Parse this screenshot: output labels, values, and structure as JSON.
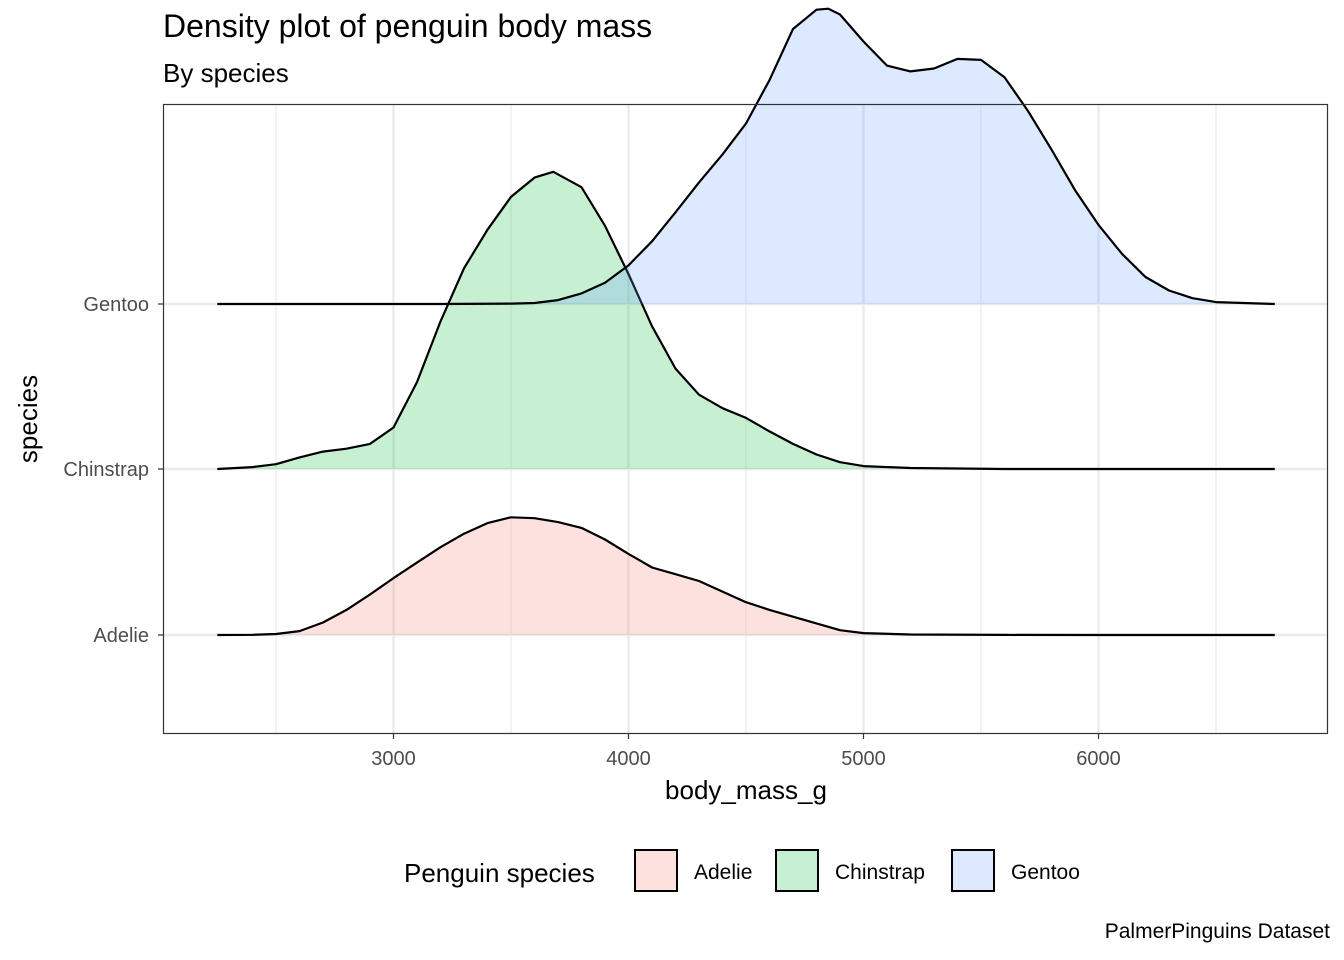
{
  "chart_data": {
    "type": "area",
    "subtype": "ridgeline-density",
    "title": "Density plot of penguin body mass",
    "subtitle": "By species",
    "caption": "PalmerPinguins Dataset",
    "xlabel": "body_mass_g",
    "ylabel": "species",
    "xlim": [
      2200,
      6800
    ],
    "x_ticks": [
      3000,
      4000,
      5000,
      6000
    ],
    "categories": [
      "Adelie",
      "Chinstrap",
      "Gentoo"
    ],
    "grid": true,
    "legend": {
      "title": "Penguin species",
      "position": "bottom",
      "entries": [
        "Adelie",
        "Chinstrap",
        "Gentoo"
      ]
    },
    "colors": {
      "Adelie": "#F8766D",
      "Chinstrap": "#00BA38",
      "Gentoo": "#619CFF"
    },
    "series": [
      {
        "name": "Adelie",
        "x": [
          2250,
          2400,
          2500,
          2600,
          2700,
          2800,
          2900,
          3000,
          3100,
          3200,
          3300,
          3400,
          3500,
          3600,
          3700,
          3800,
          3900,
          4000,
          4100,
          4200,
          4300,
          4400,
          4500,
          4600,
          4700,
          4800,
          4900,
          5000,
          5200,
          5600,
          6000,
          6400,
          6750
        ],
        "y": [
          0,
          0.002,
          0.01,
          0.04,
          0.13,
          0.26,
          0.42,
          0.59,
          0.75,
          0.91,
          1.05,
          1.16,
          1.22,
          1.21,
          1.17,
          1.11,
          0.99,
          0.84,
          0.7,
          0.63,
          0.56,
          0.45,
          0.34,
          0.26,
          0.19,
          0.12,
          0.05,
          0.02,
          0.005,
          0.001,
          0,
          0,
          0
        ]
      },
      {
        "name": "Chinstrap",
        "x": [
          2250,
          2400,
          2500,
          2600,
          2700,
          2800,
          2900,
          3000,
          3100,
          3200,
          3300,
          3400,
          3500,
          3600,
          3680,
          3800,
          3900,
          4000,
          4100,
          4200,
          4300,
          4400,
          4500,
          4600,
          4700,
          4800,
          4900,
          5000,
          5200,
          5600,
          6000,
          6400,
          6750
        ],
        "y": [
          0,
          0.02,
          0.05,
          0.12,
          0.18,
          0.21,
          0.26,
          0.43,
          0.9,
          1.53,
          2.08,
          2.48,
          2.82,
          3.02,
          3.08,
          2.92,
          2.52,
          2.02,
          1.48,
          1.04,
          0.77,
          0.63,
          0.53,
          0.39,
          0.26,
          0.15,
          0.07,
          0.03,
          0.01,
          0,
          0,
          0,
          0
        ]
      },
      {
        "name": "Gentoo",
        "x": [
          2250,
          3200,
          3500,
          3600,
          3700,
          3800,
          3900,
          4000,
          4100,
          4200,
          4300,
          4400,
          4500,
          4600,
          4700,
          4800,
          4850,
          4900,
          5000,
          5100,
          5200,
          5300,
          5400,
          5500,
          5600,
          5700,
          5800,
          5900,
          6000,
          6100,
          6200,
          6300,
          6400,
          6500,
          6750
        ],
        "y": [
          0,
          0,
          0.004,
          0.01,
          0.04,
          0.11,
          0.22,
          0.4,
          0.65,
          0.95,
          1.26,
          1.55,
          1.87,
          2.32,
          2.85,
          3.05,
          3.06,
          3.0,
          2.72,
          2.47,
          2.41,
          2.44,
          2.54,
          2.53,
          2.35,
          2.0,
          1.6,
          1.18,
          0.82,
          0.52,
          0.28,
          0.14,
          0.06,
          0.02,
          0
        ]
      }
    ]
  }
}
